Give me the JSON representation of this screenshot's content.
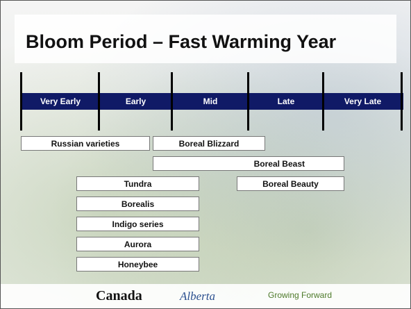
{
  "header": {
    "title": "Bloom Period – Fast Warming Year"
  },
  "timeline": {
    "periods": [
      "Very Early",
      "Early",
      "Mid",
      "Late",
      "Very Late"
    ]
  },
  "varieties": [
    "Russian varieties",
    "Boreal Blizzard",
    "Boreal Beast",
    "Tundra",
    "Boreal Beauty",
    "Borealis",
    "Indigo series",
    "Aurora",
    "Honeybee"
  ],
  "footer": {
    "logos": [
      "Canada",
      "Alberta",
      "Growing Forward"
    ]
  }
}
